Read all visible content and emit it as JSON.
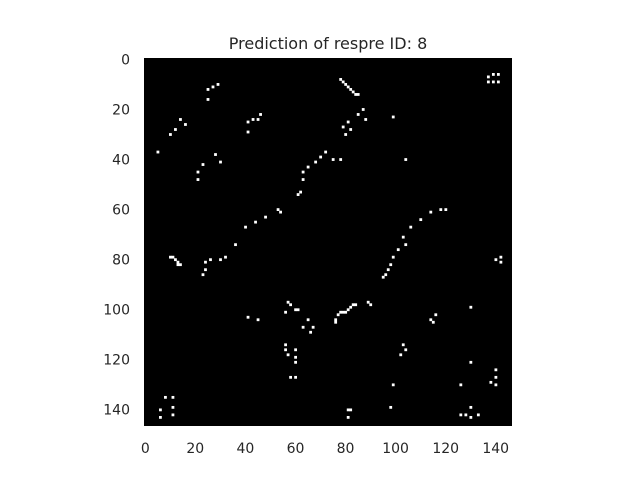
{
  "chart_data": {
    "type": "heatmap",
    "title": "Prediction of respre ID: 8",
    "xlabel": "",
    "ylabel": "",
    "grid": false,
    "legend": "none",
    "colors": {
      "background": "#000000",
      "pixel": "#ffffff"
    },
    "matrix_size": [
      147,
      147
    ],
    "xlim": [
      -0.5,
      146.5
    ],
    "ylim": [
      146.5,
      -0.5
    ],
    "x_ticks": [
      0,
      20,
      40,
      60,
      80,
      100,
      120,
      140
    ],
    "y_ticks": [
      0,
      20,
      40,
      60,
      80,
      100,
      120,
      140
    ],
    "x_tick_labels": [
      "0",
      "20",
      "40",
      "60",
      "80",
      "100",
      "120",
      "140"
    ],
    "y_tick_labels": [
      "0",
      "20",
      "40",
      "60",
      "80",
      "100",
      "120",
      "140"
    ],
    "active_cells": [
      [
        137,
        7
      ],
      [
        139,
        6
      ],
      [
        141,
        6
      ],
      [
        139,
        9
      ],
      [
        141,
        9
      ],
      [
        137,
        9
      ],
      [
        78,
        8
      ],
      [
        79,
        9
      ],
      [
        80,
        10
      ],
      [
        81,
        11
      ],
      [
        82,
        12
      ],
      [
        83,
        13
      ],
      [
        84,
        14
      ],
      [
        85,
        14
      ],
      [
        25,
        12
      ],
      [
        27,
        11
      ],
      [
        29,
        10
      ],
      [
        25,
        16
      ],
      [
        41,
        25
      ],
      [
        43,
        24
      ],
      [
        45,
        24
      ],
      [
        46,
        22
      ],
      [
        41,
        29
      ],
      [
        14,
        24
      ],
      [
        16,
        26
      ],
      [
        12,
        28
      ],
      [
        10,
        30
      ],
      [
        87,
        20
      ],
      [
        85,
        22
      ],
      [
        88,
        24
      ],
      [
        81,
        25
      ],
      [
        79,
        27
      ],
      [
        82,
        28
      ],
      [
        80,
        30
      ],
      [
        99,
        23
      ],
      [
        5,
        37
      ],
      [
        28,
        38
      ],
      [
        30,
        41
      ],
      [
        23,
        42
      ],
      [
        21,
        45
      ],
      [
        21,
        48
      ],
      [
        72,
        37
      ],
      [
        70,
        39
      ],
      [
        68,
        41
      ],
      [
        75,
        40
      ],
      [
        78,
        40
      ],
      [
        65,
        43
      ],
      [
        63,
        45
      ],
      [
        63,
        48
      ],
      [
        62,
        53
      ],
      [
        61,
        54
      ],
      [
        104,
        40
      ],
      [
        118,
        60
      ],
      [
        120,
        60
      ],
      [
        114,
        61
      ],
      [
        110,
        64
      ],
      [
        106,
        67
      ],
      [
        103,
        71
      ],
      [
        104,
        74
      ],
      [
        101,
        76
      ],
      [
        99,
        79
      ],
      [
        98,
        82
      ],
      [
        97,
        84
      ],
      [
        95,
        87
      ],
      [
        96,
        86
      ],
      [
        53,
        60
      ],
      [
        54,
        61
      ],
      [
        48,
        63
      ],
      [
        44,
        65
      ],
      [
        40,
        67
      ],
      [
        36,
        74
      ],
      [
        32,
        79
      ],
      [
        30,
        80
      ],
      [
        26,
        80
      ],
      [
        24,
        81
      ],
      [
        24,
        84
      ],
      [
        23,
        86
      ],
      [
        10,
        79
      ],
      [
        11,
        79
      ],
      [
        12,
        80
      ],
      [
        13,
        81
      ],
      [
        14,
        82
      ],
      [
        13,
        82
      ],
      [
        140,
        80
      ],
      [
        142,
        79
      ],
      [
        142,
        81
      ],
      [
        57,
        97
      ],
      [
        58,
        98
      ],
      [
        60,
        100
      ],
      [
        61,
        100
      ],
      [
        56,
        101
      ],
      [
        83,
        98
      ],
      [
        84,
        98
      ],
      [
        82,
        99
      ],
      [
        81,
        100
      ],
      [
        80,
        101
      ],
      [
        79,
        101
      ],
      [
        78,
        101
      ],
      [
        77,
        102
      ],
      [
        76,
        104
      ],
      [
        76,
        105
      ],
      [
        89,
        97
      ],
      [
        90,
        98
      ],
      [
        41,
        103
      ],
      [
        45,
        104
      ],
      [
        65,
        104
      ],
      [
        67,
        107
      ],
      [
        66,
        109
      ],
      [
        63,
        107
      ],
      [
        130,
        99
      ],
      [
        116,
        102
      ],
      [
        114,
        104
      ],
      [
        115,
        105
      ],
      [
        56,
        114
      ],
      [
        56,
        116
      ],
      [
        57,
        118
      ],
      [
        60,
        116
      ],
      [
        60,
        119
      ],
      [
        60,
        121
      ],
      [
        58,
        127
      ],
      [
        60,
        127
      ],
      [
        103,
        114
      ],
      [
        104,
        116
      ],
      [
        102,
        118
      ],
      [
        130,
        121
      ],
      [
        140,
        124
      ],
      [
        140,
        127
      ],
      [
        138,
        129
      ],
      [
        140,
        130
      ],
      [
        126,
        130
      ],
      [
        99,
        130
      ],
      [
        98,
        139
      ],
      [
        8,
        135
      ],
      [
        11,
        135
      ],
      [
        6,
        140
      ],
      [
        11,
        139
      ],
      [
        6,
        143
      ],
      [
        11,
        142
      ],
      [
        81,
        140
      ],
      [
        82,
        140
      ],
      [
        81,
        143
      ],
      [
        128,
        142
      ],
      [
        130,
        139
      ],
      [
        130,
        143
      ],
      [
        133,
        142
      ],
      [
        126,
        142
      ]
    ]
  }
}
